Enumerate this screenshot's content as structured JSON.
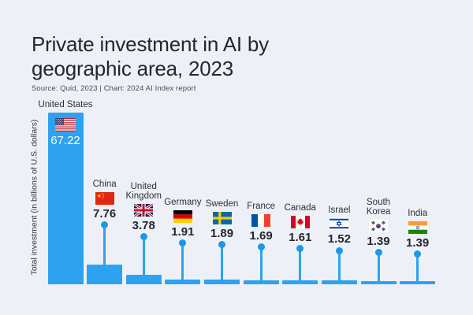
{
  "header": {
    "title": "Private investment in AI by geographic area, 2023",
    "source": "Source: Quid, 2023 | Chart: 2024 AI Index report"
  },
  "colors": {
    "background": "#edf1f7",
    "bar": "#2ea2ef",
    "callout_dot": "#1f97e8",
    "title_text": "#25252d",
    "value_text": "#26262e",
    "value_on_bar": "#ffffff"
  },
  "chart_data": {
    "type": "bar",
    "title": "Private investment in AI by geographic area, 2023",
    "ylabel": "Total investment (in billions of U.S. dollars)",
    "xlabel": "",
    "ylim": [
      0,
      70
    ],
    "grid": false,
    "legend": "none",
    "categories": [
      "United States",
      "China",
      "United Kingdom",
      "Germany",
      "Sweden",
      "France",
      "Canada",
      "Israel",
      "South Korea",
      "India"
    ],
    "values": [
      67.22,
      7.76,
      3.78,
      1.91,
      1.89,
      1.69,
      1.61,
      1.52,
      1.39,
      1.39
    ],
    "value_labels": [
      "67.22",
      "7.76",
      "3.78",
      "1.91",
      "1.89",
      "1.69",
      "1.61",
      "1.52",
      "1.39",
      "1.39"
    ],
    "flag_icons": [
      "us-flag-icon",
      "china-flag-icon",
      "uk-flag-icon",
      "germany-flag-icon",
      "sweden-flag-icon",
      "france-flag-icon",
      "canada-flag-icon",
      "israel-flag-icon",
      "south-korea-flag-icon",
      "india-flag-icon"
    ]
  }
}
